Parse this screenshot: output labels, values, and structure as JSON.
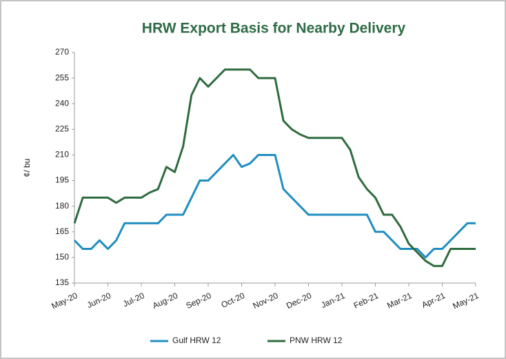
{
  "chart_data": {
    "type": "line",
    "title": "HRW Export Basis for Nearby Delivery",
    "y_label": "¢/ bu",
    "categories": [
      "May-20",
      null,
      null,
      null,
      "Jun-20",
      null,
      null,
      null,
      "Jul-20",
      null,
      null,
      null,
      "Aug-20",
      null,
      null,
      null,
      "Sep-20",
      null,
      null,
      null,
      "Oct-20",
      null,
      null,
      null,
      "Nov-20",
      null,
      null,
      null,
      "Dec-20",
      null,
      null,
      null,
      "Jan-21",
      null,
      null,
      null,
      "Feb-21",
      null,
      null,
      null,
      "Mar-21",
      null,
      null,
      null,
      "Apr-21",
      null,
      null,
      null,
      "May-21"
    ],
    "series": [
      {
        "name": "Gulf HRW 12",
        "color": "#1f8dc1",
        "values": [
          160,
          155,
          155,
          160,
          155,
          160,
          170,
          170,
          170,
          170,
          170,
          175,
          175,
          175,
          185,
          195,
          195,
          200,
          205,
          210,
          203,
          205,
          210,
          210,
          210,
          190,
          185,
          180,
          175,
          175,
          175,
          175,
          175,
          175,
          175,
          175,
          165,
          165,
          160,
          155,
          155,
          155,
          150,
          155,
          155,
          160,
          165,
          170,
          170
        ]
      },
      {
        "name": "PNW HRW 12",
        "color": "#2e6b3e",
        "values": [
          170,
          185,
          185,
          185,
          185,
          182,
          185,
          185,
          185,
          188,
          190,
          203,
          200,
          215,
          245,
          255,
          250,
          255,
          260,
          260,
          260,
          260,
          255,
          255,
          255,
          230,
          225,
          222,
          220,
          220,
          220,
          220,
          220,
          213,
          197,
          190,
          185,
          175,
          175,
          168,
          158,
          153,
          148,
          145,
          145,
          155,
          155,
          155,
          155
        ]
      }
    ],
    "ylim": [
      135,
      270
    ],
    "yticks": [
      135,
      150,
      165,
      180,
      195,
      210,
      225,
      240,
      255,
      270
    ],
    "grid": false,
    "legend": "bottom"
  }
}
